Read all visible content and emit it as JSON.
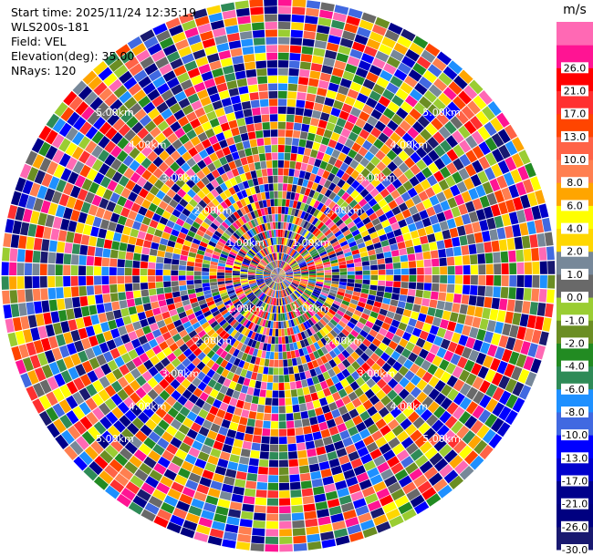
{
  "info": {
    "start_time": "Start time: 2025/11/24 12:35:19",
    "site": "WLS200s-181",
    "field": "Field: VEL",
    "elevation": "Elevation(deg): 35.00",
    "nrays": "NRays: 120"
  },
  "chart_data": {
    "type": "heatmap",
    "subtype": "polar-ppi",
    "field": "VEL",
    "unit": "m/s",
    "n_rays": 120,
    "n_gates": 36,
    "range_rings_km": [
      1.0,
      2.0,
      3.0,
      4.0,
      5.0
    ],
    "ring_labels": [
      "1.00km",
      "2.00km",
      "3.00km",
      "4.00km",
      "5.00km"
    ],
    "max_range_km": 6.0,
    "colorbar": {
      "unit_label": "m/s",
      "levels": [
        -30.0,
        -26.0,
        -21.0,
        -17.0,
        -13.0,
        -10.0,
        -8.0,
        -6.0,
        -4.0,
        -2.0,
        -1.0,
        0.0,
        1.0,
        2.0,
        4.0,
        6.0,
        8.0,
        10.0,
        13.0,
        17.0,
        21.0,
        26.0
      ],
      "tick_labels": [
        "-30.0",
        "-26.0",
        "-21.0",
        "-17.0",
        "-13.0",
        "-10.0",
        "-8.0",
        "-6.0",
        "-4.0",
        "-2.0",
        "-1.0",
        "0.0",
        "1.0",
        "2.0",
        "4.0",
        "6.0",
        "8.0",
        "10.0",
        "13.0",
        "17.0",
        "21.0",
        "26.0"
      ],
      "colors": [
        "#191970",
        "#000080",
        "#00008b",
        "#0000cd",
        "#0000ff",
        "#4169e1",
        "#1e90ff",
        "#2e8b57",
        "#228b22",
        "#6b8e23",
        "#9acd32",
        "#696969",
        "#778899",
        "#ffd700",
        "#ffff00",
        "#ffa500",
        "#ff7f50",
        "#ff6347",
        "#ff4500",
        "#ff3030",
        "#ff0000",
        "#ff1493",
        "#ff69b4"
      ]
    },
    "grid": true,
    "legend_position": "right"
  }
}
